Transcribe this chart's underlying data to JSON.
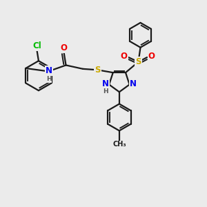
{
  "bg_color": "#ebebeb",
  "bond_color": "#1a1a1a",
  "bond_width": 1.6,
  "atom_colors": {
    "C": "#1a1a1a",
    "N": "#0000ee",
    "O": "#ee0000",
    "S": "#ccaa00",
    "Cl": "#00bb00",
    "H": "#555555"
  },
  "fs": 8.5,
  "fs2": 6.5,
  "fs3": 7.5
}
